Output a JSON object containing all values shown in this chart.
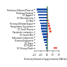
{
  "categories": [
    "SIC Primary Metals",
    "SIC Plastic",
    "SIC Paper",
    "Electrical Equipment",
    "Fabrication Components",
    "SIC Textile Mills",
    "Equipment, computers",
    "SIC Small Process",
    "Transportation Equipment",
    "Printing & Related Support",
    "SIC Misc",
    "SIC Manufacturing",
    "SIC Apparel",
    "Petroleum Products",
    "Petroleum & Natural Products"
  ],
  "blue_left": [
    -0.08,
    -0.15,
    -0.22,
    -0.28,
    -0.32,
    -0.38,
    -0.42,
    -0.48,
    -0.52,
    -0.56,
    -0.62,
    -0.68,
    -0.74,
    -0.78,
    -0.85
  ],
  "red_bar_starts": [
    0.55,
    0.0,
    0.0,
    0.0,
    0.0,
    0.0,
    0.18,
    0.12,
    0.08,
    0.06,
    0.04,
    0.0,
    0.0,
    0.0,
    0.0
  ],
  "red_bar_widths": [
    0.3,
    0.0,
    0.0,
    0.0,
    0.06,
    0.06,
    0.22,
    0.2,
    0.16,
    0.14,
    0.1,
    0.08,
    0.06,
    0.0,
    0.0
  ],
  "green_region": [
    -0.02,
    0.04
  ],
  "blue_color": "#2255aa",
  "red_color": "#ee5544",
  "green_color": "#88cc88",
  "background_color": "#ffffff",
  "xlabel": "Electricity Demand or Supply Intensity (kWh/m2/yr)",
  "xlim": [
    -1.0,
    1.0
  ],
  "label_fontsize": 1.8,
  "tick_fontsize": 1.8
}
